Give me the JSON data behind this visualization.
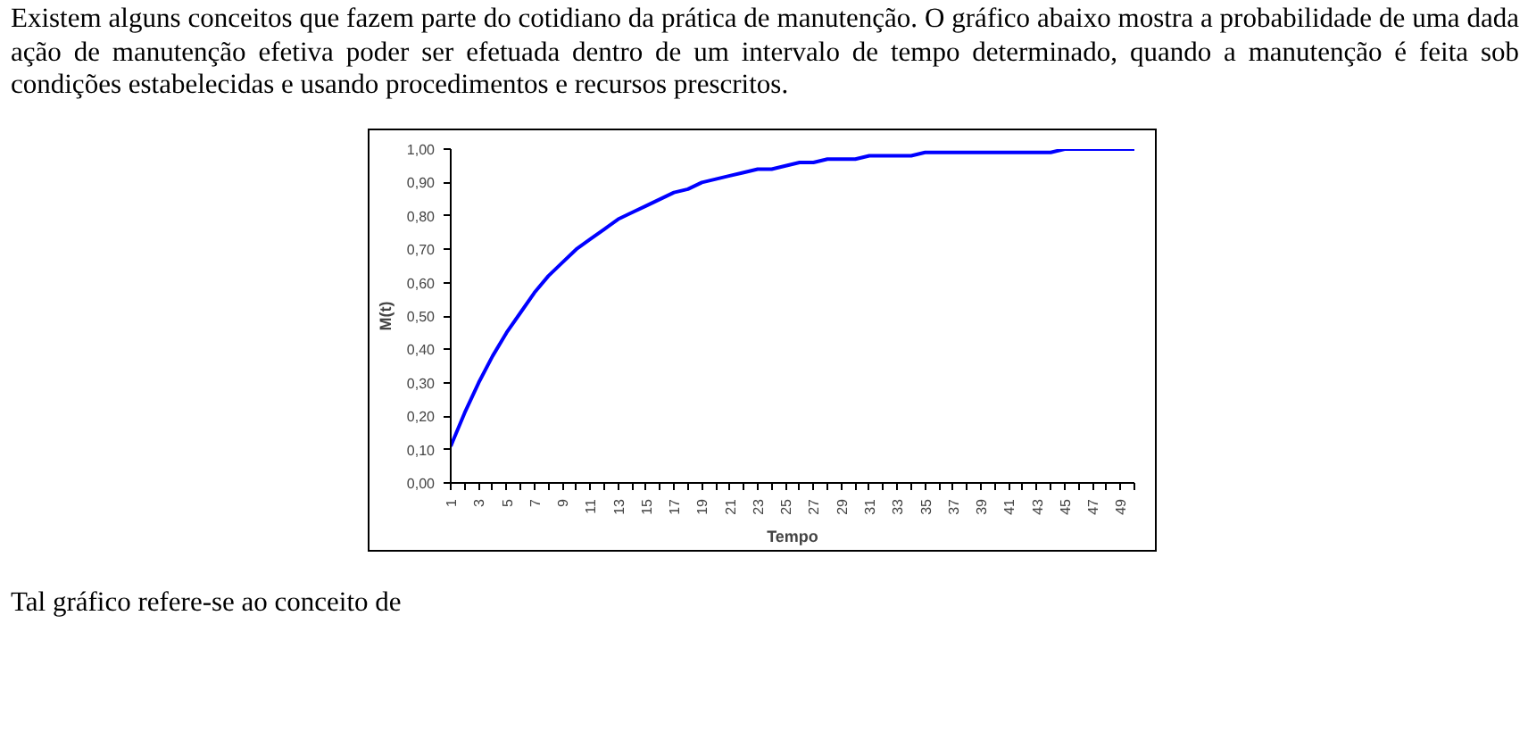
{
  "chart_data": {
    "type": "line",
    "annotations": [
      "Existem alguns conceitos que fazem parte do cotidiano da prática de manutenção. O gráfico abaixo mostra a probabilidade de uma dada ação de manutenção efetiva poder ser efetuada dentro de um intervalo de tempo determinado, quando a manutenção é feita sob condições estabelecidas e usando procedimentos e recursos prescritos.",
      "Tal gráfico refere-se ao conceito de"
    ],
    "xlabel": "Tempo",
    "ylabel": "M(t)",
    "x": [
      1,
      2,
      3,
      4,
      5,
      6,
      7,
      8,
      9,
      10,
      11,
      12,
      13,
      14,
      15,
      16,
      17,
      18,
      19,
      20,
      21,
      22,
      23,
      24,
      25,
      26,
      27,
      28,
      29,
      30,
      31,
      32,
      33,
      34,
      35,
      36,
      37,
      38,
      39,
      40,
      41,
      42,
      43,
      44,
      45,
      46,
      47,
      48,
      49,
      50
    ],
    "series": [
      {
        "color": "#0000ff",
        "values": [
          0.11,
          0.21,
          0.3,
          0.38,
          0.45,
          0.51,
          0.57,
          0.62,
          0.66,
          0.7,
          0.73,
          0.76,
          0.79,
          0.81,
          0.83,
          0.85,
          0.87,
          0.88,
          0.9,
          0.91,
          0.92,
          0.93,
          0.94,
          0.94,
          0.95,
          0.96,
          0.96,
          0.97,
          0.97,
          0.97,
          0.98,
          0.98,
          0.98,
          0.98,
          0.99,
          0.99,
          0.99,
          0.99,
          0.99,
          0.99,
          0.99,
          0.99,
          0.99,
          0.99,
          1.0,
          1.0,
          1.0,
          1.0,
          1.0,
          1.0
        ]
      }
    ],
    "xlim": [
      1,
      50
    ],
    "xticks": [
      1,
      {
        "value": 2,
        "label": null
      },
      3,
      {
        "value": 4,
        "label": null
      },
      5,
      {
        "value": 6,
        "label": null
      },
      7,
      {
        "value": 8,
        "label": null
      },
      9,
      {
        "value": 10,
        "label": null
      },
      11,
      {
        "value": 12,
        "label": null
      },
      13,
      {
        "value": 14,
        "label": null
      },
      15,
      {
        "value": 16,
        "label": null
      },
      17,
      {
        "value": 18,
        "label": null
      },
      19,
      {
        "value": 20,
        "label": null
      },
      21,
      {
        "value": 22,
        "label": null
      },
      23,
      {
        "value": 24,
        "label": null
      },
      25,
      {
        "value": 26,
        "label": null
      },
      27,
      {
        "value": 28,
        "label": null
      },
      29,
      {
        "value": 30,
        "label": null
      },
      31,
      {
        "value": 32,
        "label": null
      },
      33,
      {
        "value": 34,
        "label": null
      },
      35,
      {
        "value": 36,
        "label": null
      },
      37,
      {
        "value": 38,
        "label": null
      },
      39,
      {
        "value": 40,
        "label": null
      },
      41,
      {
        "value": 42,
        "label": null
      },
      43,
      {
        "value": 44,
        "label": null
      },
      45,
      {
        "value": 46,
        "label": null
      },
      47,
      {
        "value": 48,
        "label": null
      },
      49,
      {
        "value": 50,
        "label": null
      }
    ],
    "ylim": [
      0,
      1
    ],
    "yticks": [
      {
        "value": 0,
        "label": "0,00"
      },
      {
        "value": 0.1,
        "label": "0,10"
      },
      {
        "value": 0.2,
        "label": "0,20"
      },
      {
        "value": 0.3,
        "label": "0,30"
      },
      {
        "value": 0.4,
        "label": "0,40"
      },
      {
        "value": 0.5,
        "label": "0,50"
      },
      {
        "value": 0.6,
        "label": "0,60"
      },
      {
        "value": 0.7,
        "label": "0,70"
      },
      {
        "value": 0.8,
        "label": "0,80"
      },
      {
        "value": 0.9,
        "label": "0,90"
      },
      {
        "value": 1.0,
        "label": "1,00"
      }
    ],
    "grid": false,
    "marker": "none",
    "line_style": "solid"
  }
}
